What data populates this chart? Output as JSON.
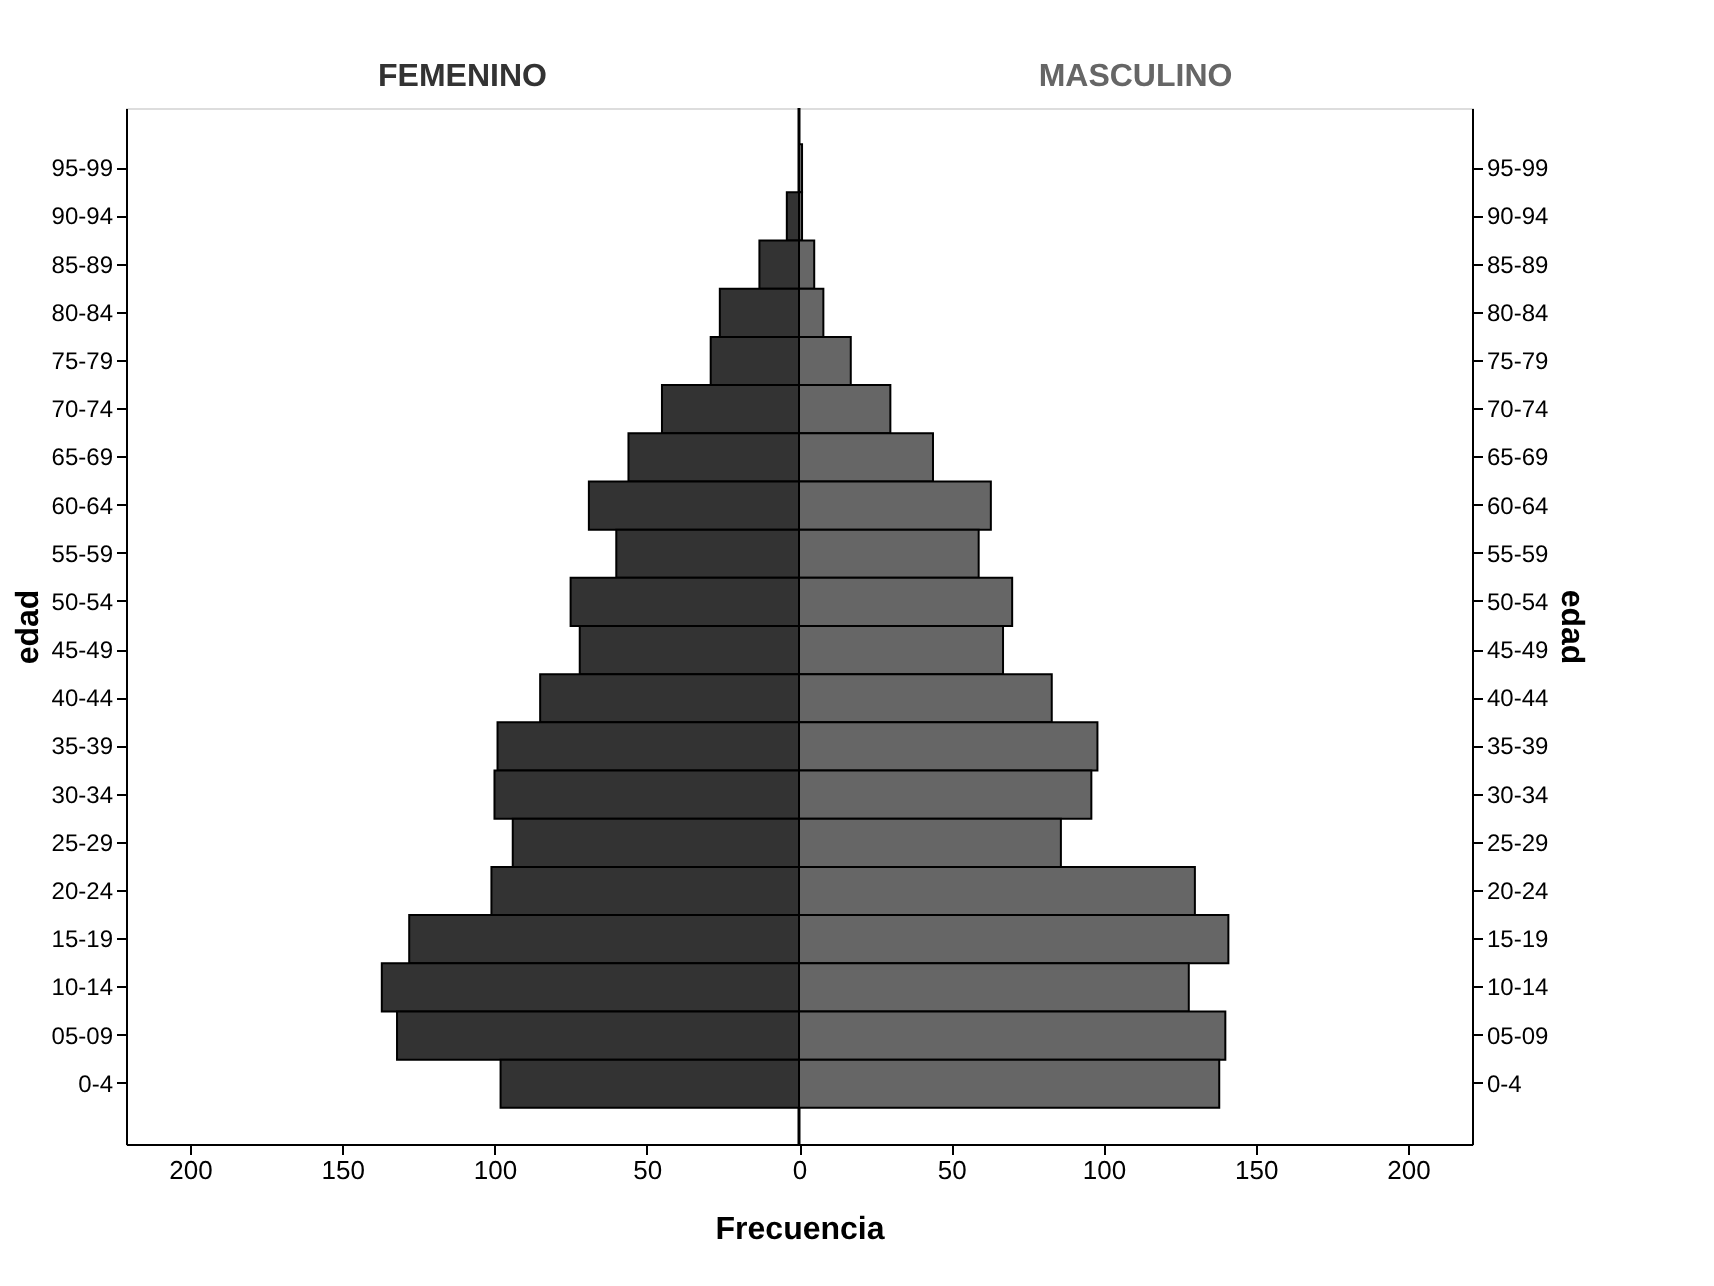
{
  "chart_data": {
    "type": "bar",
    "orientation": "horizontal",
    "xlabel": "Frecuencia",
    "ylabel": "edad",
    "y2label": "edad",
    "categories": [
      "95-99",
      "90-94",
      "85-89",
      "80-84",
      "75-79",
      "70-74",
      "65-69",
      "60-64",
      "55-59",
      "50-54",
      "45-49",
      "40-44",
      "35-39",
      "30-34",
      "25-29",
      "20-24",
      "15-19",
      "10-14",
      "05-09",
      "0-4"
    ],
    "series": [
      {
        "name": "FEMENINO",
        "color": "#333333",
        "values": [
          null,
          -4,
          -13,
          -26,
          -29,
          -45,
          -56,
          -69,
          -60,
          -75,
          -72,
          -85,
          -99,
          -100,
          -94,
          -101,
          -128,
          -137,
          -132,
          -98
        ]
      },
      {
        "name": "MASCULINO",
        "color": "#666666",
        "values": [
          1,
          1,
          5,
          8,
          17,
          30,
          44,
          63,
          59,
          70,
          67,
          83,
          98,
          96,
          86,
          130,
          141,
          128,
          140,
          138
        ]
      }
    ],
    "xlim": [
      -221,
      221
    ],
    "xticks": [
      {
        "value": -200,
        "label": "200"
      },
      {
        "value": -150,
        "label": "150"
      },
      {
        "value": -100,
        "label": "100"
      },
      {
        "value": -50,
        "label": "50"
      },
      0,
      50,
      100,
      150,
      200
    ],
    "ref_lines": [
      {
        "axis": "x",
        "value": 0
      }
    ],
    "stacked": true,
    "grid": false,
    "legend": false
  }
}
